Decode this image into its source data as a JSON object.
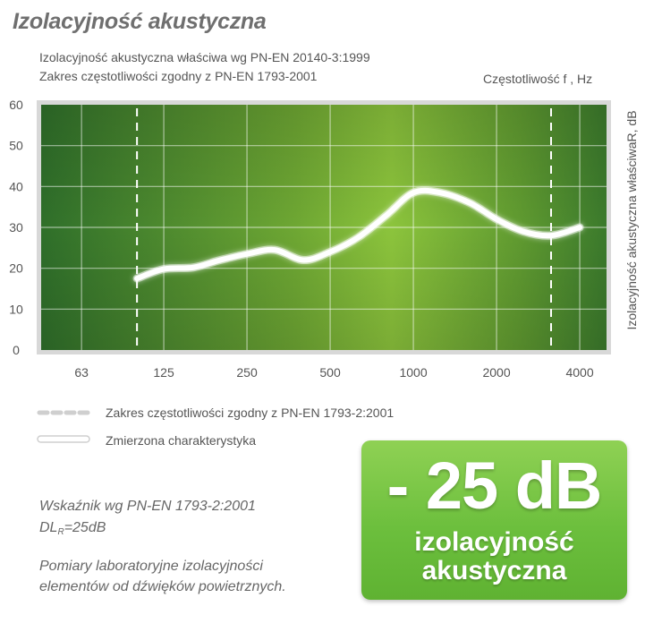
{
  "header": {
    "title": "Izolacyjność akustyczna",
    "subtitle_1": "Izolacyjność akustyczna właściwa wg PN-EN 20140-3:1999",
    "subtitle_2": "Zakres częstotliwości zgodny z PN-EN 1793-2001"
  },
  "chart_data": {
    "type": "line",
    "xlabel": "Częstotliwość f , Hz",
    "ylabel": "Izolacyjność akustyczna właściwaR, dB",
    "x_tick_labels": [
      "63",
      "125",
      "250",
      "500",
      "1000",
      "2000",
      "4000"
    ],
    "y_tick_labels": [
      "60",
      "50",
      "40",
      "30",
      "20",
      "10",
      "0"
    ],
    "x_scale": "log",
    "ylim": [
      0,
      60
    ],
    "grid": true,
    "series": [
      {
        "name": "Zmierzona charakterystyka",
        "x": [
          100,
          125,
          160,
          200,
          250,
          315,
          400,
          500,
          630,
          800,
          1000,
          1250,
          1600,
          2000,
          2500,
          3150,
          4000
        ],
        "y": [
          17.5,
          19.8,
          20.2,
          22,
          23.5,
          24.5,
          22,
          24,
          27.5,
          33,
          38.5,
          38.5,
          36,
          32,
          29,
          28,
          30
        ]
      }
    ],
    "frequency_range_markers": [
      100,
      3150
    ],
    "colors": {
      "plot_dark": "#2f6f2a",
      "plot_light": "#8cc43c",
      "line": "#ffffff"
    }
  },
  "legend": {
    "range_label": "Zakres częstotliwości zgodny z PN-EN 1793-2:2001",
    "measured_label": "Zmierzona charakterystyka"
  },
  "notes": {
    "index_label": "Wskaźnik wg PN-EN 1793-2:2001",
    "dl_main": "DL",
    "dl_sub": "R",
    "dl_value": "=25dB",
    "line_1": "Pomiary laboratoryjne izolacyjności",
    "line_2": "elementów od dźwięków powietrznych."
  },
  "badge": {
    "value": "- 25 dB",
    "caption_1": "izolacyjność",
    "caption_2": "akustyczna",
    "color": "#6cbf3d"
  }
}
